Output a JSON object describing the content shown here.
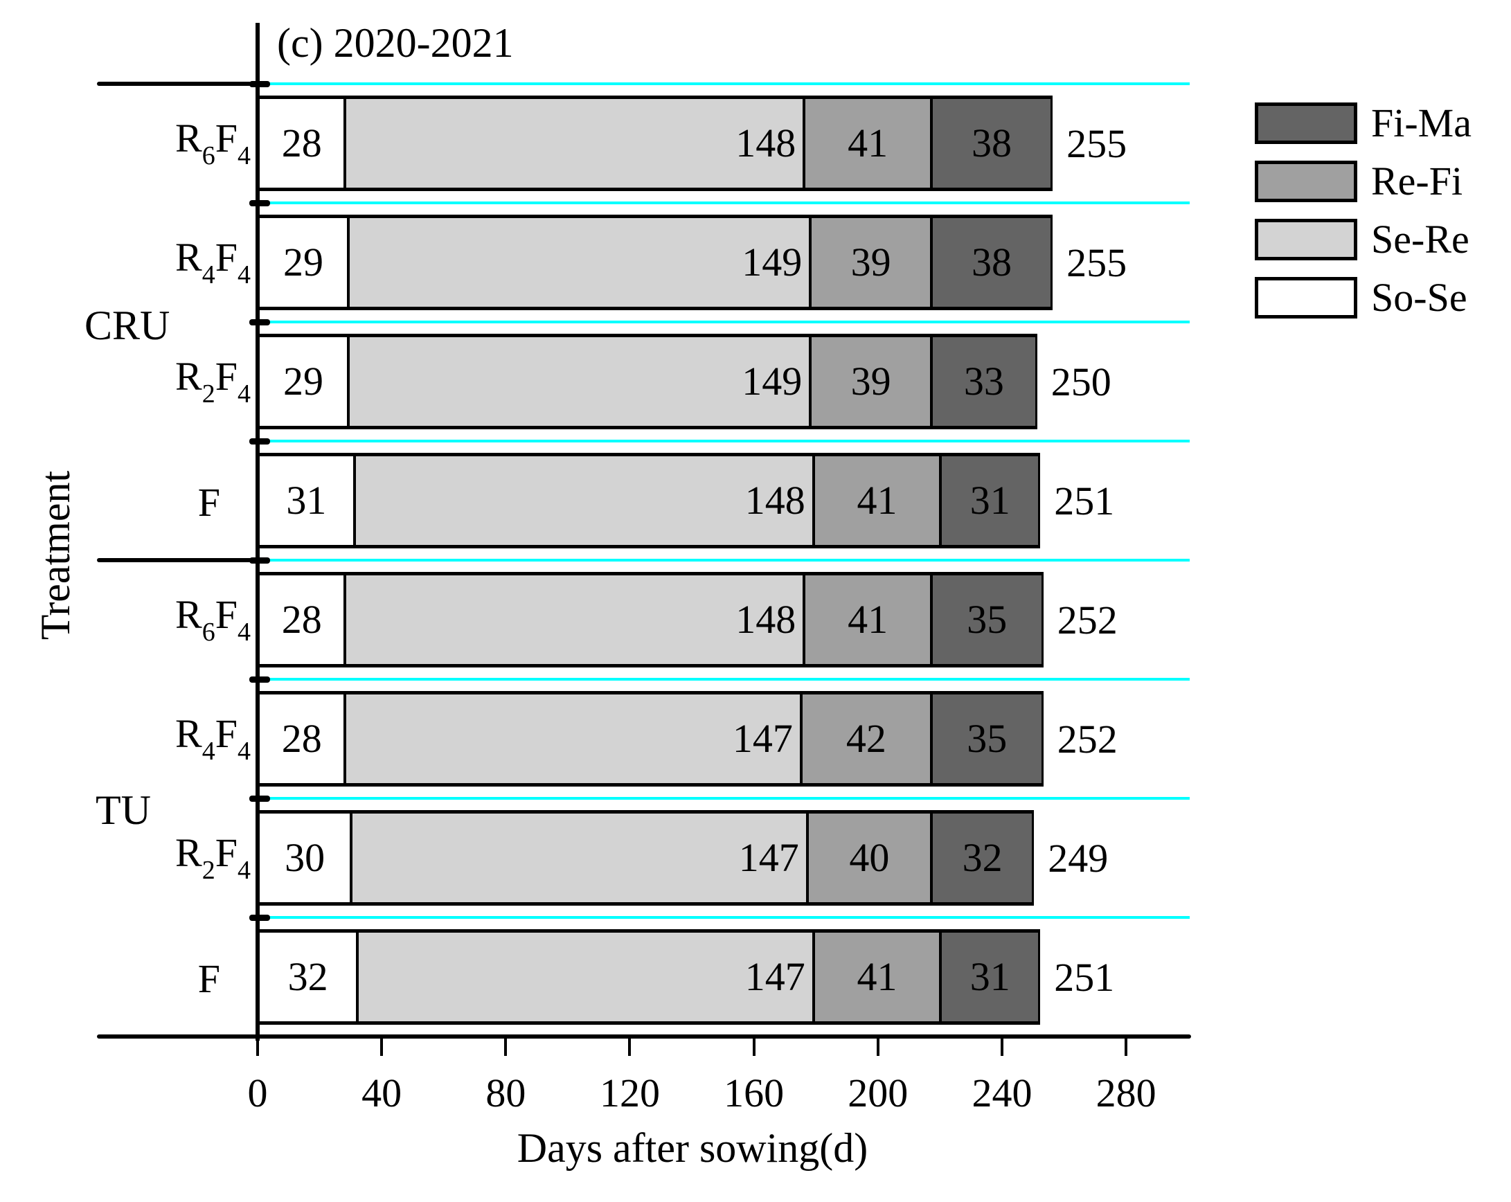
{
  "chart_data": {
    "type": "bar",
    "orientation": "horizontal",
    "stacked": true,
    "title": "(c) 2020-2021",
    "xlabel": "Days after sowing(d)",
    "ylabel": "Treatment",
    "xlim": [
      0,
      300
    ],
    "xticks": [
      0,
      40,
      80,
      120,
      160,
      200,
      240,
      280
    ],
    "grid": false,
    "legend_position": "right",
    "groups": [
      {
        "name": "CRU",
        "rows": [
          "R6F4",
          "R4F4",
          "R2F4",
          "F"
        ]
      },
      {
        "name": "TU",
        "rows": [
          "R6F4",
          "R4F4",
          "R2F4",
          "F"
        ]
      }
    ],
    "categories": [
      "CRU R6F4",
      "CRU R4F4",
      "CRU R2F4",
      "CRU F",
      "TU R6F4",
      "TU R4F4",
      "TU R2F4",
      "TU F"
    ],
    "series": [
      {
        "name": "So-Se",
        "color": "#ffffff",
        "values": [
          28,
          29,
          29,
          31,
          28,
          28,
          30,
          32
        ]
      },
      {
        "name": "Se-Re",
        "color": "#d3d3d3",
        "values": [
          148,
          149,
          149,
          148,
          148,
          147,
          147,
          147
        ]
      },
      {
        "name": "Re-Fi",
        "color": "#a0a0a0",
        "values": [
          41,
          39,
          39,
          41,
          41,
          42,
          40,
          41
        ]
      },
      {
        "name": "Fi-Ma",
        "color": "#646464",
        "values": [
          38,
          38,
          33,
          31,
          35,
          35,
          32,
          31
        ]
      }
    ],
    "totals": [
      255,
      255,
      250,
      251,
      252,
      252,
      249,
      251
    ]
  },
  "title": "(c) 2020-2021",
  "axes": {
    "xlabel": "Days after sowing(d)",
    "ylabel": "Treatment",
    "xticks": [
      "0",
      "40",
      "80",
      "120",
      "160",
      "200",
      "240",
      "280"
    ]
  },
  "groups": [
    {
      "label": "CRU"
    },
    {
      "label": "TU"
    }
  ],
  "rows": [
    {
      "main": "R",
      "sub1": "6",
      "mid": "F",
      "sub2": "4",
      "segments": [
        "28",
        "148",
        "41",
        "38"
      ],
      "total": "255"
    },
    {
      "main": "R",
      "sub1": "4",
      "mid": "F",
      "sub2": "4",
      "segments": [
        "29",
        "149",
        "39",
        "38"
      ],
      "total": "255"
    },
    {
      "main": "R",
      "sub1": "2",
      "mid": "F",
      "sub2": "4",
      "segments": [
        "29",
        "149",
        "39",
        "33"
      ],
      "total": "250"
    },
    {
      "main": "F",
      "sub1": "",
      "mid": "",
      "sub2": "",
      "segments": [
        "31",
        "148",
        "41",
        "31"
      ],
      "total": "251"
    },
    {
      "main": "R",
      "sub1": "6",
      "mid": "F",
      "sub2": "4",
      "segments": [
        "28",
        "148",
        "41",
        "35"
      ],
      "total": "252"
    },
    {
      "main": "R",
      "sub1": "4",
      "mid": "F",
      "sub2": "4",
      "segments": [
        "28",
        "147",
        "42",
        "35"
      ],
      "total": "252"
    },
    {
      "main": "R",
      "sub1": "2",
      "mid": "F",
      "sub2": "4",
      "segments": [
        "30",
        "147",
        "40",
        "32"
      ],
      "total": "249"
    },
    {
      "main": "F",
      "sub1": "",
      "mid": "",
      "sub2": "",
      "segments": [
        "32",
        "147",
        "41",
        "31"
      ],
      "total": "251"
    }
  ],
  "legend": [
    {
      "label": "Fi-Ma",
      "color": "#646464"
    },
    {
      "label": "Re-Fi",
      "color": "#a0a0a0"
    },
    {
      "label": "Se-Re",
      "color": "#d3d3d3"
    },
    {
      "label": "So-Se",
      "color": "#ffffff"
    }
  ],
  "colors": {
    "so_se": "#ffffff",
    "se_re": "#d3d3d3",
    "re_fi": "#a0a0a0",
    "fi_ma": "#646464",
    "row_divider": "#00ffff"
  }
}
